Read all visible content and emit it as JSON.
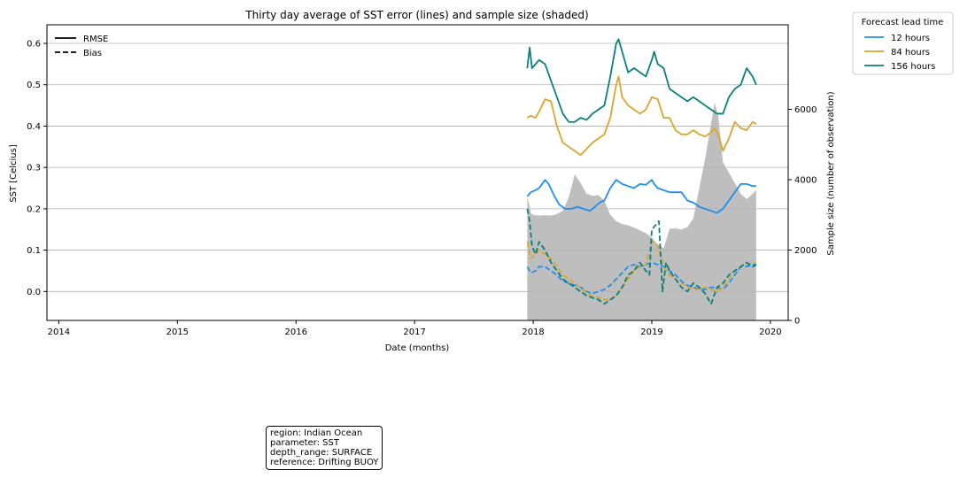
{
  "chart_data": {
    "type": "line",
    "title": "Thirty day average of SST error (lines) and sample size (shaded)",
    "xlabel": "Date (months)",
    "ylabel": "SST [Celcius]",
    "ylabel_right": "Sample size (number of observation)",
    "x_ticks": [
      "2014",
      "2015",
      "2016",
      "2017",
      "2018",
      "2019",
      "2020"
    ],
    "xlim": [
      2013.9,
      2020.15
    ],
    "ylim": [
      -0.07,
      0.645
    ],
    "y_ticks": [
      "0.0",
      "0.1",
      "0.2",
      "0.3",
      "0.4",
      "0.5",
      "0.6"
    ],
    "ylim_right": [
      0,
      8400
    ],
    "y_ticks_right": [
      "0",
      "2000",
      "4000",
      "6000"
    ],
    "grid": "horizontal",
    "style_legend": {
      "position": "top-left",
      "entries": [
        {
          "label": "RMSE",
          "dash": "solid"
        },
        {
          "label": "Bias",
          "dash": "dashed"
        }
      ]
    },
    "legend": {
      "title": "Forecast lead time",
      "position": "outside-top-right",
      "entries": [
        {
          "label": "12 hours",
          "color": "#1f8ef1"
        },
        {
          "label": "84 hours",
          "color": "#daa52a"
        },
        {
          "label": "156 hours",
          "color": "#0a7f7c"
        }
      ]
    },
    "sample_size": {
      "color": "#bebebe",
      "x": [
        2017.95,
        2017.97,
        2017.98,
        2018.0,
        2018.05,
        2018.1,
        2018.15,
        2018.2,
        2018.25,
        2018.3,
        2018.35,
        2018.4,
        2018.45,
        2018.5,
        2018.55,
        2018.6,
        2018.65,
        2018.7,
        2018.75,
        2018.8,
        2018.85,
        2018.9,
        2018.95,
        2019.0,
        2019.05,
        2019.1,
        2019.15,
        2019.2,
        2019.25,
        2019.3,
        2019.35,
        2019.4,
        2019.45,
        2019.5,
        2019.53,
        2019.56,
        2019.6,
        2019.65,
        2019.7,
        2019.75,
        2019.8,
        2019.85,
        2019.88
      ],
      "values": [
        3500,
        3250,
        3050,
        3000,
        2980,
        2990,
        2980,
        3020,
        3120,
        3500,
        4150,
        3900,
        3600,
        3540,
        3560,
        3400,
        3000,
        2820,
        2740,
        2700,
        2640,
        2560,
        2480,
        2350,
        2150,
        2050,
        2600,
        2620,
        2580,
        2650,
        2900,
        3750,
        4600,
        5600,
        6200,
        5800,
        4500,
        4200,
        3900,
        3600,
        3450,
        3600,
        3700
      ]
    },
    "series": [
      {
        "name": "12 hours",
        "metric": "RMSE",
        "color": "#1f8ef1",
        "x": [
          2017.95,
          2017.98,
          2018.02,
          2018.05,
          2018.1,
          2018.13,
          2018.18,
          2018.22,
          2018.27,
          2018.32,
          2018.38,
          2018.42,
          2018.48,
          2018.52,
          2018.56,
          2018.6,
          2018.65,
          2018.7,
          2018.75,
          2018.8,
          2018.85,
          2018.9,
          2018.95,
          2019.0,
          2019.02,
          2019.05,
          2019.1,
          2019.15,
          2019.2,
          2019.25,
          2019.3,
          2019.35,
          2019.4,
          2019.45,
          2019.5,
          2019.55,
          2019.6,
          2019.65,
          2019.7,
          2019.75,
          2019.8,
          2019.85,
          2019.88
        ],
        "y": [
          0.23,
          0.24,
          0.245,
          0.25,
          0.27,
          0.26,
          0.23,
          0.21,
          0.2,
          0.2,
          0.205,
          0.2,
          0.195,
          0.205,
          0.215,
          0.22,
          0.25,
          0.27,
          0.26,
          0.255,
          0.25,
          0.26,
          0.258,
          0.27,
          0.26,
          0.25,
          0.245,
          0.24,
          0.24,
          0.24,
          0.22,
          0.215,
          0.205,
          0.2,
          0.195,
          0.19,
          0.2,
          0.22,
          0.24,
          0.26,
          0.26,
          0.255,
          0.255
        ]
      },
      {
        "name": "84 hours",
        "metric": "RMSE",
        "color": "#daa52a",
        "x": [
          2017.95,
          2017.98,
          2018.02,
          2018.05,
          2018.1,
          2018.15,
          2018.2,
          2018.25,
          2018.3,
          2018.35,
          2018.4,
          2018.45,
          2018.5,
          2018.55,
          2018.6,
          2018.65,
          2018.7,
          2018.72,
          2018.75,
          2018.8,
          2018.85,
          2018.9,
          2018.95,
          2019.0,
          2019.05,
          2019.1,
          2019.15,
          2019.2,
          2019.25,
          2019.3,
          2019.35,
          2019.4,
          2019.45,
          2019.5,
          2019.53,
          2019.56,
          2019.6,
          2019.65,
          2019.7,
          2019.75,
          2019.8,
          2019.85,
          2019.88
        ],
        "y": [
          0.42,
          0.425,
          0.42,
          0.435,
          0.465,
          0.46,
          0.4,
          0.36,
          0.35,
          0.34,
          0.33,
          0.345,
          0.36,
          0.37,
          0.38,
          0.42,
          0.5,
          0.52,
          0.47,
          0.45,
          0.44,
          0.43,
          0.44,
          0.47,
          0.465,
          0.42,
          0.42,
          0.39,
          0.38,
          0.38,
          0.39,
          0.38,
          0.375,
          0.385,
          0.395,
          0.38,
          0.34,
          0.37,
          0.41,
          0.395,
          0.39,
          0.41,
          0.405
        ]
      },
      {
        "name": "156 hours",
        "metric": "RMSE",
        "color": "#0a7f7c",
        "x": [
          2017.95,
          2017.97,
          2017.99,
          2018.02,
          2018.05,
          2018.1,
          2018.15,
          2018.2,
          2018.25,
          2018.3,
          2018.35,
          2018.4,
          2018.45,
          2018.5,
          2018.55,
          2018.6,
          2018.65,
          2018.7,
          2018.72,
          2018.75,
          2018.8,
          2018.85,
          2018.9,
          2018.95,
          2019.0,
          2019.02,
          2019.05,
          2019.1,
          2019.15,
          2019.2,
          2019.25,
          2019.3,
          2019.35,
          2019.4,
          2019.45,
          2019.5,
          2019.55,
          2019.6,
          2019.65,
          2019.7,
          2019.75,
          2019.8,
          2019.85,
          2019.88
        ],
        "y": [
          0.54,
          0.59,
          0.54,
          0.55,
          0.56,
          0.55,
          0.51,
          0.47,
          0.43,
          0.41,
          0.41,
          0.42,
          0.415,
          0.43,
          0.44,
          0.45,
          0.52,
          0.6,
          0.61,
          0.58,
          0.53,
          0.54,
          0.53,
          0.52,
          0.56,
          0.58,
          0.55,
          0.54,
          0.49,
          0.48,
          0.47,
          0.46,
          0.47,
          0.46,
          0.45,
          0.44,
          0.43,
          0.43,
          0.47,
          0.49,
          0.5,
          0.54,
          0.52,
          0.5
        ]
      },
      {
        "name": "12 hours",
        "metric": "Bias",
        "color": "#1f8ef1",
        "x": [
          2017.95,
          2017.98,
          2018.02,
          2018.05,
          2018.1,
          2018.15,
          2018.2,
          2018.25,
          2018.3,
          2018.35,
          2018.4,
          2018.45,
          2018.5,
          2018.55,
          2018.6,
          2018.65,
          2018.7,
          2018.75,
          2018.8,
          2018.85,
          2018.9,
          2018.95,
          2019.0,
          2019.05,
          2019.1,
          2019.15,
          2019.2,
          2019.25,
          2019.3,
          2019.35,
          2019.4,
          2019.45,
          2019.5,
          2019.55,
          2019.6,
          2019.65,
          2019.7,
          2019.75,
          2019.8,
          2019.85,
          2019.88
        ],
        "y": [
          0.06,
          0.045,
          0.05,
          0.06,
          0.06,
          0.05,
          0.04,
          0.025,
          0.02,
          0.015,
          0.01,
          0.0,
          -0.005,
          0.0,
          0.005,
          0.015,
          0.03,
          0.045,
          0.06,
          0.065,
          0.06,
          0.065,
          0.07,
          0.065,
          0.06,
          0.05,
          0.04,
          0.025,
          0.015,
          0.01,
          0.005,
          0.005,
          0.01,
          0.01,
          0.005,
          0.02,
          0.04,
          0.06,
          0.06,
          0.065,
          0.065
        ]
      },
      {
        "name": "84 hours",
        "metric": "Bias",
        "color": "#daa52a",
        "x": [
          2017.95,
          2017.98,
          2018.02,
          2018.05,
          2018.1,
          2018.15,
          2018.2,
          2018.25,
          2018.3,
          2018.35,
          2018.4,
          2018.45,
          2018.5,
          2018.55,
          2018.6,
          2018.65,
          2018.7,
          2018.75,
          2018.8,
          2018.85,
          2018.9,
          2018.95,
          2019.0,
          2019.03,
          2019.05,
          2019.1,
          2019.15,
          2019.2,
          2019.25,
          2019.3,
          2019.35,
          2019.4,
          2019.45,
          2019.5,
          2019.55,
          2019.6,
          2019.65,
          2019.7,
          2019.75,
          2019.8,
          2019.85,
          2019.88
        ],
        "y": [
          0.12,
          0.08,
          0.09,
          0.1,
          0.09,
          0.08,
          0.06,
          0.04,
          0.03,
          0.02,
          0.01,
          -0.005,
          -0.01,
          -0.015,
          -0.02,
          -0.02,
          -0.01,
          0.01,
          0.03,
          0.05,
          0.06,
          0.065,
          0.12,
          0.12,
          0.11,
          0.06,
          0.04,
          0.03,
          0.02,
          0.01,
          0.005,
          0.005,
          0.01,
          0.005,
          0.0,
          0.01,
          0.03,
          0.05,
          0.06,
          0.065,
          0.07,
          0.07
        ]
      },
      {
        "name": "156 hours",
        "metric": "Bias",
        "color": "#0a7f7c",
        "x": [
          2017.95,
          2017.97,
          2017.99,
          2018.02,
          2018.05,
          2018.1,
          2018.15,
          2018.2,
          2018.25,
          2018.3,
          2018.35,
          2018.4,
          2018.45,
          2018.5,
          2018.55,
          2018.6,
          2018.65,
          2018.7,
          2018.75,
          2018.8,
          2018.85,
          2018.9,
          2018.95,
          2018.98,
          2019.0,
          2019.03,
          2019.06,
          2019.09,
          2019.12,
          2019.15,
          2019.2,
          2019.25,
          2019.3,
          2019.35,
          2019.4,
          2019.45,
          2019.5,
          2019.55,
          2019.6,
          2019.65,
          2019.7,
          2019.75,
          2019.8,
          2019.85,
          2019.88
        ],
        "y": [
          0.2,
          0.17,
          0.11,
          0.09,
          0.12,
          0.1,
          0.07,
          0.05,
          0.03,
          0.02,
          0.01,
          0.0,
          -0.01,
          -0.015,
          -0.02,
          -0.03,
          -0.02,
          -0.01,
          0.01,
          0.04,
          0.05,
          0.07,
          0.05,
          0.04,
          0.15,
          0.16,
          0.17,
          0.0,
          0.07,
          0.05,
          0.03,
          0.01,
          0.0,
          0.02,
          0.01,
          -0.005,
          -0.03,
          0.01,
          0.02,
          0.04,
          0.05,
          0.06,
          0.07,
          0.06,
          0.065
        ]
      }
    ]
  },
  "info_box": {
    "lines": [
      "region: Indian Ocean",
      "parameter: SST",
      "depth_range: SURFACE",
      "reference: Drifting BUOY"
    ]
  }
}
